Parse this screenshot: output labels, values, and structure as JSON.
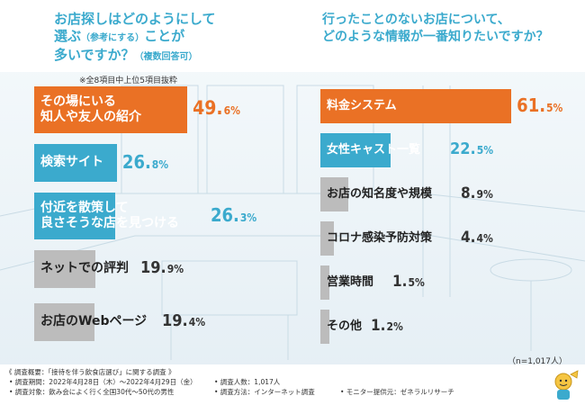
{
  "header": {
    "left_question": {
      "line1": "お店探しはどのようにして",
      "line2a": "選ぶ",
      "line2_small": "（参考にする）",
      "line2b": "ことが",
      "line3a": "多いですか？",
      "line3_small": "（複数回答可）"
    },
    "right_question": {
      "line1": "行ったことのないお店について、",
      "line2": "どのような情報が一番知りたいですか？"
    }
  },
  "note": "※全8項目中上位5項目抜粋",
  "colors": {
    "orange": "#ea7125",
    "blue": "#3baacd",
    "gray": "#bcbcbc"
  },
  "chart_data": [
    {
      "type": "bar",
      "title": "お店探しはどのようにして選ぶ（参考にする）ことが多いですか？（複数回答可）",
      "categories": [
        "その場にいる知人や友人の紹介",
        "検索サイト",
        "付近を散策して良さそうな店を見つける",
        "ネットでの評判",
        "お店のWebページ"
      ],
      "values": [
        49.6,
        26.8,
        26.3,
        19.9,
        19.4
      ],
      "value_labels": [
        {
          "main": "49.",
          "unit": "6%"
        },
        {
          "main": "26.",
          "unit": "8%"
        },
        {
          "main": "26.",
          "unit": "3%"
        },
        {
          "main": "19.",
          "unit": "9%"
        },
        {
          "main": "19.",
          "unit": "4%"
        }
      ],
      "bar_labels": [
        [
          "その場にいる",
          "知人や友人の紹介"
        ],
        [
          "検索サイト"
        ],
        [
          "付近を散策して",
          "良さそうな店を見つける"
        ],
        [
          "ネットでの評判"
        ],
        [
          "お店のWebページ"
        ]
      ],
      "styles": [
        "orange",
        "blue",
        "blue",
        "gray",
        "gray"
      ],
      "unit": "%"
    },
    {
      "type": "bar",
      "title": "行ったことのないお店について、どのような情報が一番知りたいですか？",
      "categories": [
        "料金システム",
        "女性キャスト一覧",
        "お店の知名度や規模",
        "コロナ感染予防対策",
        "営業時間",
        "その他"
      ],
      "values": [
        61.5,
        22.5,
        8.9,
        4.4,
        1.5,
        1.2
      ],
      "value_labels": [
        {
          "main": "61.",
          "unit": "5%"
        },
        {
          "main": "22.",
          "unit": "5%"
        },
        {
          "main": "8.",
          "unit": "9%"
        },
        {
          "main": "4.",
          "unit": "4%"
        },
        {
          "main": "1.",
          "unit": "5%"
        },
        {
          "main": "1.",
          "unit": "2%"
        }
      ],
      "bar_labels": [
        [
          "料金システム"
        ],
        [
          "女性キャスト一覧"
        ],
        [
          "お店の知名度や規模"
        ],
        [
          "コロナ感染予防対策"
        ],
        [
          "営業時間"
        ],
        [
          "その他"
        ]
      ],
      "styles": [
        "orange",
        "blue",
        "gray",
        "gray",
        "gray",
        "gray"
      ],
      "unit": "%"
    }
  ],
  "sample_size": "（n=1,017人）",
  "footer": {
    "summary": "《 調査概要：「接待を伴う飲食店選び」に関する調査 》",
    "period": "• 調査期間：2022年4月28日（木）〜2022年4月29日（金）",
    "target": "• 調査対象：飲み会によく行く全国30代〜50代の男性",
    "count": "• 調査人数：1,017人",
    "method": "• 調査方法：インターネット調査",
    "provider": "• モニター提供元：ゼネラルリサーチ"
  }
}
